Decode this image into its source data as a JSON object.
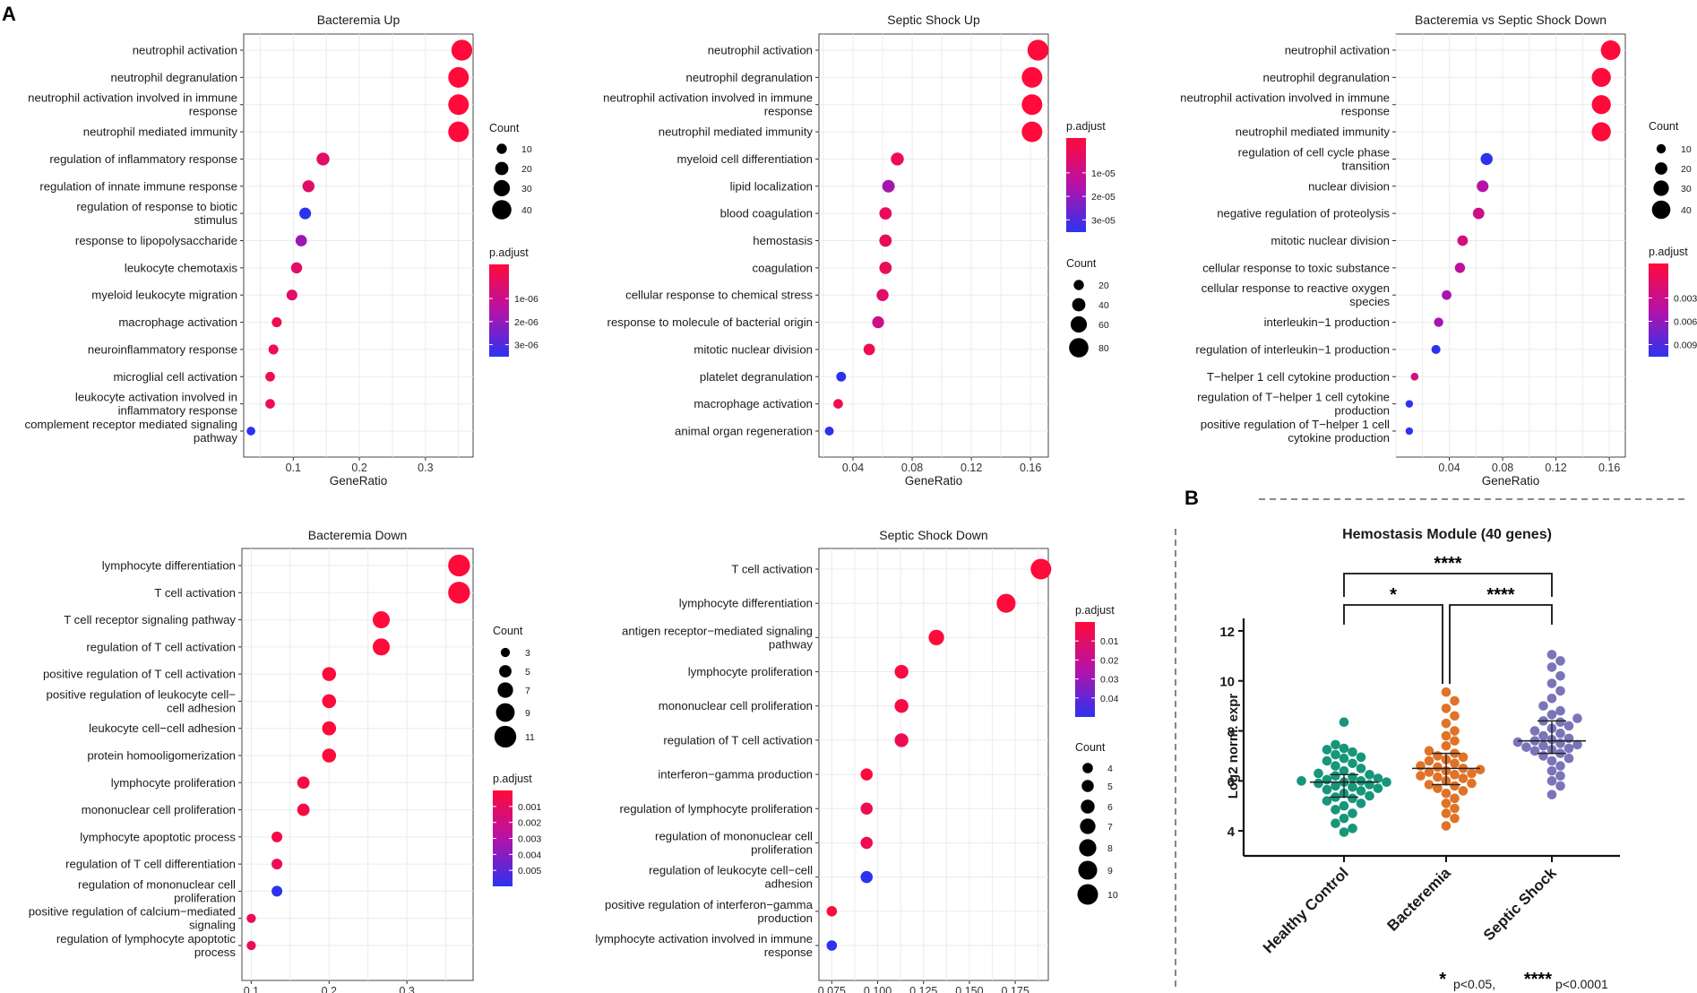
{
  "panel_labels": [
    "A",
    "B"
  ],
  "colors": {
    "padj_low": "#ff0a3a",
    "padj_mid": "#b512a8",
    "padj_high": "#2d32f0",
    "grid": "#ebebeb",
    "healthy": "#16967a",
    "bacteremia": "#e07327",
    "septic": "#7b74b8"
  },
  "chart_data": [
    {
      "type": "scatter",
      "id": "bact_up",
      "title": "Bacteremia Up",
      "xlabel": "GeneRatio",
      "xlim": [
        0.025,
        0.372
      ],
      "xticks": [
        0.1,
        0.2,
        0.3
      ],
      "xtick_labels": [
        "0.1",
        "0.2",
        "0.3"
      ],
      "terms": [
        {
          "label": [
            "neutrophil activation"
          ],
          "x": 0.355,
          "count": 45,
          "padj": 0.0
        },
        {
          "label": [
            "neutrophil degranulation"
          ],
          "x": 0.35,
          "count": 44,
          "padj": 0.0
        },
        {
          "label": [
            "neutrophil activation involved in immune",
            "response"
          ],
          "x": 0.35,
          "count": 44,
          "padj": 0.0
        },
        {
          "label": [
            "neutrophil mediated immunity"
          ],
          "x": 0.35,
          "count": 44,
          "padj": 0.0
        },
        {
          "label": [
            "regulation of inflammatory response"
          ],
          "x": 0.145,
          "count": 19,
          "padj": 0.2
        },
        {
          "label": [
            "regulation of innate immune response"
          ],
          "x": 0.123,
          "count": 16,
          "padj": 0.2
        },
        {
          "label": [
            "regulation of response to biotic",
            "stimulus"
          ],
          "x": 0.118,
          "count": 15,
          "padj": 1.0
        },
        {
          "label": [
            "response to lipopolysaccharide"
          ],
          "x": 0.112,
          "count": 14,
          "padj": 0.6
        },
        {
          "label": [
            "leukocyte chemotaxis"
          ],
          "x": 0.105,
          "count": 13,
          "padj": 0.2
        },
        {
          "label": [
            "myeloid leukocyte migration"
          ],
          "x": 0.098,
          "count": 12,
          "padj": 0.2
        },
        {
          "label": [
            "macrophage activation"
          ],
          "x": 0.075,
          "count": 9,
          "padj": 0.1
        },
        {
          "label": [
            "neuroinflammatory response"
          ],
          "x": 0.07,
          "count": 9,
          "padj": 0.1
        },
        {
          "label": [
            "microglial cell activation"
          ],
          "x": 0.065,
          "count": 8,
          "padj": 0.1
        },
        {
          "label": [
            "leukocyte activation involved in",
            "inflammatory response"
          ],
          "x": 0.065,
          "count": 8,
          "padj": 0.1
        },
        {
          "label": [
            "complement receptor mediated signaling",
            "pathway"
          ],
          "x": 0.036,
          "count": 5,
          "padj": 1.0
        }
      ],
      "size_legend": {
        "title": "Count",
        "values": [
          10,
          20,
          30,
          40
        ]
      },
      "color_legend": {
        "title": "p.adjust",
        "labels": [
          "1e-06",
          "2e-06",
          "3e-06"
        ]
      }
    },
    {
      "type": "scatter",
      "id": "shock_up",
      "title": "Septic Shock Up",
      "xlabel": "GeneRatio",
      "xlim": [
        0.017,
        0.172
      ],
      "xticks": [
        0.04,
        0.08,
        0.12,
        0.16
      ],
      "xtick_labels": [
        "0.04",
        "0.08",
        "0.12",
        "0.16"
      ],
      "terms": [
        {
          "label": [
            "neutrophil activation"
          ],
          "x": 0.165,
          "count": 90,
          "padj": 0.0
        },
        {
          "label": [
            "neutrophil degranulation"
          ],
          "x": 0.161,
          "count": 88,
          "padj": 0.0
        },
        {
          "label": [
            "neutrophil activation involved in immune",
            "response"
          ],
          "x": 0.161,
          "count": 88,
          "padj": 0.0
        },
        {
          "label": [
            "neutrophil mediated immunity"
          ],
          "x": 0.161,
          "count": 88,
          "padj": 0.0
        },
        {
          "label": [
            "myeloid cell differentiation"
          ],
          "x": 0.07,
          "count": 38,
          "padj": 0.1
        },
        {
          "label": [
            "lipid localization"
          ],
          "x": 0.064,
          "count": 35,
          "padj": 0.55
        },
        {
          "label": [
            "blood coagulation"
          ],
          "x": 0.062,
          "count": 34,
          "padj": 0.15
        },
        {
          "label": [
            "hemostasis"
          ],
          "x": 0.062,
          "count": 34,
          "padj": 0.15
        },
        {
          "label": [
            "coagulation"
          ],
          "x": 0.062,
          "count": 34,
          "padj": 0.15
        },
        {
          "label": [
            "cellular response to chemical stress"
          ],
          "x": 0.06,
          "count": 32,
          "padj": 0.2
        },
        {
          "label": [
            "response to molecule of bacterial origin"
          ],
          "x": 0.057,
          "count": 31,
          "padj": 0.35
        },
        {
          "label": [
            "mitotic nuclear division"
          ],
          "x": 0.051,
          "count": 28,
          "padj": 0.1
        },
        {
          "label": [
            "platelet degranulation"
          ],
          "x": 0.032,
          "count": 17,
          "padj": 1.0
        },
        {
          "label": [
            "macrophage activation"
          ],
          "x": 0.03,
          "count": 16,
          "padj": 0.1
        },
        {
          "label": [
            "animal organ regeneration"
          ],
          "x": 0.024,
          "count": 12,
          "padj": 1.0
        }
      ],
      "color_legend": {
        "title": "p.adjust",
        "labels": [
          "1e-05",
          "2e-05",
          "3e-05"
        ]
      },
      "size_legend": {
        "title": "Count",
        "values": [
          20,
          40,
          60,
          80
        ]
      }
    },
    {
      "type": "scatter",
      "id": "bvs_down",
      "title": "Bacteremia vs Septic Shock Down",
      "xlabel": "GeneRatio",
      "xlim": [
        0.0,
        0.172
      ],
      "xticks": [
        0.04,
        0.08,
        0.12,
        0.16
      ],
      "xtick_labels": [
        "0.04",
        "0.08",
        "0.12",
        "0.16"
      ],
      "terms": [
        {
          "label": [
            "neutrophil activation"
          ],
          "x": 0.161,
          "count": 44,
          "padj": 0.0
        },
        {
          "label": [
            "neutrophil degranulation"
          ],
          "x": 0.154,
          "count": 42,
          "padj": 0.0
        },
        {
          "label": [
            "neutrophil activation involved in immune",
            "response"
          ],
          "x": 0.154,
          "count": 42,
          "padj": 0.0
        },
        {
          "label": [
            "neutrophil mediated immunity"
          ],
          "x": 0.154,
          "count": 42,
          "padj": 0.0
        },
        {
          "label": [
            "regulation of cell cycle phase",
            "transition"
          ],
          "x": 0.068,
          "count": 19,
          "padj": 1.0
        },
        {
          "label": [
            "nuclear division"
          ],
          "x": 0.065,
          "count": 18,
          "padj": 0.5
        },
        {
          "label": [
            "negative regulation of proteolysis"
          ],
          "x": 0.062,
          "count": 17,
          "padj": 0.35
        },
        {
          "label": [
            "mitotic nuclear division"
          ],
          "x": 0.05,
          "count": 14,
          "padj": 0.3
        },
        {
          "label": [
            "cellular response to toxic substance"
          ],
          "x": 0.048,
          "count": 13,
          "padj": 0.45
        },
        {
          "label": [
            "cellular response to reactive oxygen",
            "species"
          ],
          "x": 0.038,
          "count": 11,
          "padj": 0.55
        },
        {
          "label": [
            "interleukin−1 production"
          ],
          "x": 0.032,
          "count": 10,
          "padj": 0.55
        },
        {
          "label": [
            "regulation of interleukin−1 production"
          ],
          "x": 0.03,
          "count": 9,
          "padj": 1.0
        },
        {
          "label": [
            "T−helper 1 cell cytokine production"
          ],
          "x": 0.014,
          "count": 5,
          "padj": 0.3
        },
        {
          "label": [
            "regulation of T−helper 1 cell cytokine",
            "production"
          ],
          "x": 0.01,
          "count": 4,
          "padj": 1.0
        },
        {
          "label": [
            "positive regulation of T−helper 1 cell",
            "cytokine production"
          ],
          "x": 0.01,
          "count": 4,
          "padj": 1.0
        }
      ],
      "size_legend": {
        "title": "Count",
        "values": [
          10,
          20,
          30,
          40
        ]
      },
      "color_legend": {
        "title": "p.adjust",
        "labels": [
          "0.003",
          "0.006",
          "0.009"
        ]
      }
    },
    {
      "type": "scatter",
      "id": "bact_down",
      "title": "Bacteremia Down",
      "xlabel": "GeneRatio",
      "xlim": [
        0.088,
        0.385
      ],
      "xticks": [
        0.1,
        0.2,
        0.3
      ],
      "xtick_labels": [
        "0.1",
        "0.2",
        "0.3"
      ],
      "terms": [
        {
          "label": [
            "lymphocyte differentiation"
          ],
          "x": 0.367,
          "count": 11,
          "padj": 0.0
        },
        {
          "label": [
            "T cell activation"
          ],
          "x": 0.367,
          "count": 11,
          "padj": 0.0
        },
        {
          "label": [
            "T cell receptor signaling pathway"
          ],
          "x": 0.267,
          "count": 8,
          "padj": 0.0
        },
        {
          "label": [
            "regulation of T cell activation"
          ],
          "x": 0.267,
          "count": 8,
          "padj": 0.0
        },
        {
          "label": [
            "positive regulation of T cell activation"
          ],
          "x": 0.2,
          "count": 6,
          "padj": 0.0
        },
        {
          "label": [
            "positive regulation of leukocyte cell−",
            "cell adhesion"
          ],
          "x": 0.2,
          "count": 6,
          "padj": 0.0
        },
        {
          "label": [
            "leukocyte cell−cell adhesion"
          ],
          "x": 0.2,
          "count": 6,
          "padj": 0.0
        },
        {
          "label": [
            "protein homooligomerization"
          ],
          "x": 0.2,
          "count": 6,
          "padj": 0.0
        },
        {
          "label": [
            "lymphocyte proliferation"
          ],
          "x": 0.167,
          "count": 5,
          "padj": 0.05
        },
        {
          "label": [
            "mononuclear cell proliferation"
          ],
          "x": 0.167,
          "count": 5,
          "padj": 0.05
        },
        {
          "label": [
            "lymphocyte apoptotic process"
          ],
          "x": 0.133,
          "count": 4,
          "padj": 0.05
        },
        {
          "label": [
            "regulation of T cell differentiation"
          ],
          "x": 0.133,
          "count": 4,
          "padj": 0.1
        },
        {
          "label": [
            "regulation of mononuclear cell",
            "proliferation"
          ],
          "x": 0.133,
          "count": 4,
          "padj": 1.0
        },
        {
          "label": [
            "positive regulation of calcium−mediated",
            "signaling"
          ],
          "x": 0.1,
          "count": 3,
          "padj": 0.15
        },
        {
          "label": [
            "regulation of lymphocyte apoptotic",
            "process"
          ],
          "x": 0.1,
          "count": 3,
          "padj": 0.15
        }
      ],
      "size_legend": {
        "title": "Count",
        "values": [
          3,
          5,
          7,
          9,
          11
        ]
      },
      "color_legend": {
        "title": "p.adjust",
        "labels": [
          "0.001",
          "0.002",
          "0.003",
          "0.004",
          "0.005"
        ]
      }
    },
    {
      "type": "scatter",
      "id": "shock_down",
      "title": "Septic Shock Down",
      "xlabel": "GeneRatio",
      "xlim": [
        0.068,
        0.193
      ],
      "xticks": [
        0.075,
        0.1,
        0.125,
        0.15,
        0.175
      ],
      "xtick_labels": [
        "0.075",
        "0.100",
        "0.125",
        "0.150",
        "0.175"
      ],
      "terms": [
        {
          "label": [
            "T cell activation"
          ],
          "x": 0.189,
          "count": 10,
          "padj": 0.0
        },
        {
          "label": [
            "lymphocyte differentiation"
          ],
          "x": 0.17,
          "count": 9,
          "padj": 0.0
        },
        {
          "label": [
            "antigen receptor−mediated signaling",
            "pathway"
          ],
          "x": 0.132,
          "count": 7,
          "padj": 0.0
        },
        {
          "label": [
            "lymphocyte proliferation"
          ],
          "x": 0.113,
          "count": 6,
          "padj": 0.05
        },
        {
          "label": [
            "mononuclear cell proliferation"
          ],
          "x": 0.113,
          "count": 6,
          "padj": 0.05
        },
        {
          "label": [
            "regulation of T cell activation"
          ],
          "x": 0.113,
          "count": 6,
          "padj": 0.1
        },
        {
          "label": [
            "interferon−gamma production"
          ],
          "x": 0.094,
          "count": 5,
          "padj": 0.0
        },
        {
          "label": [
            "regulation of lymphocyte proliferation"
          ],
          "x": 0.094,
          "count": 5,
          "padj": 0.1
        },
        {
          "label": [
            "regulation of mononuclear cell",
            "proliferation"
          ],
          "x": 0.094,
          "count": 5,
          "padj": 0.1
        },
        {
          "label": [
            "regulation of leukocyte cell−cell",
            "adhesion"
          ],
          "x": 0.094,
          "count": 5,
          "padj": 1.0
        },
        {
          "label": [
            "positive regulation of interferon−gamma",
            "production"
          ],
          "x": 0.075,
          "count": 4,
          "padj": 0.0
        },
        {
          "label": [
            "lymphocyte activation involved in immune",
            "response"
          ],
          "x": 0.075,
          "count": 4,
          "padj": 1.0
        }
      ],
      "color_legend": {
        "title": "p.adjust",
        "labels": [
          "0.01",
          "0.02",
          "0.03",
          "0.04"
        ]
      },
      "size_legend": {
        "title": "Count",
        "values": [
          4,
          5,
          6,
          7,
          8,
          9,
          10
        ]
      }
    },
    {
      "type": "scatter",
      "id": "hemostasis",
      "title": "Hemostasis Module (40 genes)",
      "xlabel": "",
      "ylabel": "Log2 norm. expr",
      "ylim": [
        3.0,
        12.5
      ],
      "yticks": [
        4,
        6,
        8,
        10,
        12
      ],
      "ytick_labels": [
        "4",
        "6",
        "8",
        "10",
        "12"
      ],
      "categories": [
        "Healthy Control",
        "Bacteremia",
        "Septic Shock"
      ],
      "series": [
        {
          "name": "Healthy Control",
          "median": 5.95,
          "q1": 5.35,
          "q3": 6.25,
          "values": [
            8.35,
            7.45,
            7.3,
            7.25,
            7.15,
            7.05,
            6.95,
            6.9,
            6.8,
            6.7,
            6.6,
            6.5,
            6.4,
            6.3,
            6.25,
            6.2,
            6.15,
            6.1,
            6.05,
            6.0,
            6.0,
            5.95,
            5.95,
            5.9,
            5.85,
            5.8,
            5.75,
            5.7,
            5.65,
            5.6,
            5.5,
            5.4,
            5.35,
            5.3,
            5.2,
            5.1,
            5.0,
            4.85,
            4.7,
            4.5,
            4.3,
            4.1,
            3.95
          ]
        },
        {
          "name": "Bacteremia",
          "median": 6.5,
          "q1": 5.85,
          "q3": 7.1,
          "values": [
            9.55,
            9.2,
            8.9,
            8.6,
            8.3,
            8.0,
            7.8,
            7.6,
            7.4,
            7.2,
            7.1,
            7.0,
            6.95,
            6.85,
            6.8,
            6.7,
            6.6,
            6.55,
            6.5,
            6.45,
            6.4,
            6.35,
            6.3,
            6.25,
            6.2,
            6.15,
            6.1,
            6.0,
            5.9,
            5.85,
            5.8,
            5.7,
            5.6,
            5.5,
            5.3,
            5.1,
            4.9,
            4.7,
            4.5,
            4.2
          ]
        },
        {
          "name": "Septic Shock",
          "median": 7.6,
          "q1": 7.1,
          "q3": 8.4,
          "values": [
            11.05,
            10.8,
            10.55,
            10.2,
            9.9,
            9.6,
            9.3,
            9.0,
            8.8,
            8.65,
            8.5,
            8.4,
            8.35,
            8.2,
            8.1,
            8.0,
            7.9,
            7.8,
            7.7,
            7.65,
            7.6,
            7.55,
            7.5,
            7.45,
            7.4,
            7.35,
            7.3,
            7.25,
            7.2,
            7.1,
            7.0,
            6.9,
            6.8,
            6.6,
            6.4,
            6.2,
            6.0,
            5.8,
            5.45
          ]
        }
      ],
      "significance": [
        {
          "pair": [
            "Healthy Control",
            "Septic Shock"
          ],
          "label": "****"
        },
        {
          "pair": [
            "Healthy Control",
            "Bacteremia"
          ],
          "label": "*"
        },
        {
          "pair": [
            "Bacteremia",
            "Septic Shock"
          ],
          "label": "****"
        }
      ],
      "footnote": {
        "star1": "*",
        "text1": "p<0.05,",
        "star4": "****",
        "text4": "p<0.0001"
      }
    }
  ]
}
